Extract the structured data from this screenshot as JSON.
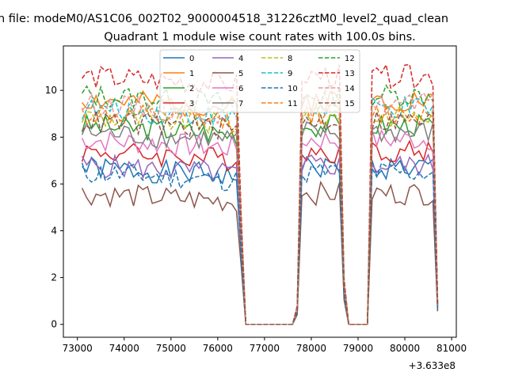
{
  "figure": {
    "suptitle": "n file: modeM0/AS1C06_002T02_9000004518_31226cztM0_level2_quad_clean",
    "offset_text": "+3.633e8"
  },
  "chart_data": {
    "type": "line",
    "title": "Quadrant 1 module wise count rates with 100.0s bins.",
    "xlabel": "",
    "ylabel": "",
    "xlim": [
      72700,
      81100
    ],
    "ylim": [
      -0.55,
      11.9
    ],
    "xticks": [
      73000,
      74000,
      75000,
      76000,
      77000,
      78000,
      79000,
      80000,
      81000
    ],
    "yticks": [
      0,
      2,
      4,
      6,
      8,
      10
    ],
    "grid": false,
    "legend_placement": "top-center",
    "legend_columns": 4,
    "segments": [
      [
        73100,
        76400
      ],
      [
        77800,
        78600
      ],
      [
        79300,
        80600
      ]
    ],
    "gaps": [
      [
        76500,
        3.6
      ],
      [
        76600,
        0
      ],
      [
        76700,
        0
      ],
      [
        76800,
        0
      ],
      [
        76900,
        0
      ],
      [
        77000,
        0
      ],
      [
        77100,
        0
      ],
      [
        77200,
        0
      ],
      [
        77300,
        0
      ],
      [
        77400,
        0
      ],
      [
        77500,
        0
      ],
      [
        77600,
        0
      ],
      [
        77700,
        0.6
      ],
      [
        77800,
        null
      ],
      [
        78700,
        1.5
      ],
      [
        78800,
        0
      ],
      [
        78900,
        0
      ],
      [
        79000,
        0
      ],
      [
        79100,
        0
      ],
      [
        79200,
        0
      ],
      [
        80700,
        0.8
      ]
    ],
    "series": [
      {
        "name": "0",
        "color": "#1f77b4",
        "dash": false,
        "level": 6.7
      },
      {
        "name": "1",
        "color": "#ff7f0e",
        "dash": false,
        "level": 9.6
      },
      {
        "name": "2",
        "color": "#2ca02c",
        "dash": false,
        "level": 8.5
      },
      {
        "name": "3",
        "color": "#d62728",
        "dash": false,
        "level": 7.4
      },
      {
        "name": "4",
        "color": "#9467bd",
        "dash": false,
        "level": 6.8
      },
      {
        "name": "5",
        "color": "#8c564b",
        "dash": false,
        "level": 5.6
      },
      {
        "name": "6",
        "color": "#e377c2",
        "dash": false,
        "level": 7.9
      },
      {
        "name": "7",
        "color": "#7f7f7f",
        "dash": false,
        "level": 8.2
      },
      {
        "name": "8",
        "color": "#bcbd22",
        "dash": true,
        "level": 8.9
      },
      {
        "name": "9",
        "color": "#17becf",
        "dash": true,
        "level": 9.2
      },
      {
        "name": "10",
        "color": "#1f77b4",
        "dash": true,
        "level": 6.5
      },
      {
        "name": "11",
        "color": "#ff7f0e",
        "dash": true,
        "level": 9.0
      },
      {
        "name": "12",
        "color": "#2ca02c",
        "dash": true,
        "level": 9.8
      },
      {
        "name": "13",
        "color": "#d62728",
        "dash": true,
        "level": 10.6
      },
      {
        "name": "14",
        "color": "#e7969c",
        "dash": true,
        "level": 9.4
      },
      {
        "name": "15",
        "color": "#8c564b",
        "dash": true,
        "level": 8.7
      }
    ]
  }
}
